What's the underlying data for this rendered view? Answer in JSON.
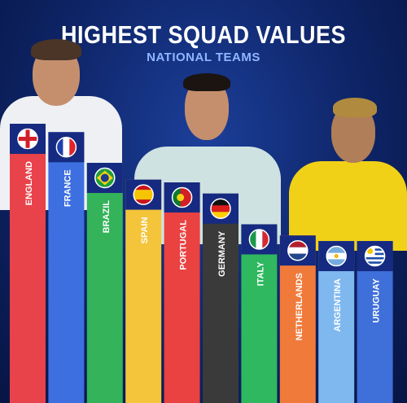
{
  "header": {
    "title": "HIGHEST SQUAD VALUES",
    "subtitle": "NATIONAL TEAMS"
  },
  "chart_data": {
    "type": "bar",
    "title": "HIGHEST SQUAD VALUES",
    "subtitle": "NATIONAL TEAMS",
    "categories": [
      "ENGLAND",
      "FRANCE",
      "BRAZIL",
      "SPAIN",
      "PORTUGAL",
      "GERMANY",
      "ITALY",
      "NETHERLANDS",
      "ARGENTINA",
      "URUGUAY"
    ],
    "values": [
      100,
      97,
      86,
      80,
      79,
      75,
      64,
      60,
      58,
      58
    ],
    "bar_colors": [
      "#e8424a",
      "#3d6fe0",
      "#34b35a",
      "#f4c43a",
      "#ea4141",
      "#3a3a3a",
      "#2fb85f",
      "#f07a3a",
      "#7fb8ef",
      "#3f6fd8"
    ],
    "flags": [
      "england-flag-icon",
      "france-flag-icon",
      "brazil-flag-icon",
      "spain-flag-icon",
      "portugal-flag-icon",
      "germany-flag-icon",
      "italy-flag-icon",
      "netherlands-flag-icon",
      "argentina-flag-icon",
      "uruguay-flag-icon"
    ],
    "value_labels_shown": false,
    "axes_shown": false,
    "grid": false
  }
}
